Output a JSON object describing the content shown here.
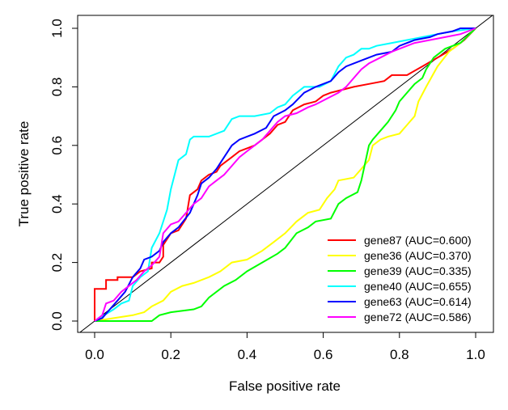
{
  "chart_data": {
    "type": "line",
    "title": "",
    "xlabel": "False positive rate",
    "ylabel": "True positive rate",
    "xlim": [
      0,
      1
    ],
    "ylim": [
      0,
      1
    ],
    "x_ticks": [
      "0.0",
      "0.2",
      "0.4",
      "0.6",
      "0.8",
      "1.0"
    ],
    "y_ticks": [
      "0.0",
      "0.2",
      "0.4",
      "0.6",
      "0.8",
      "1.0"
    ],
    "grid": false,
    "legend_position": "bottom-right",
    "reference_line": {
      "from": [
        0,
        0
      ],
      "to": [
        1,
        1
      ],
      "color": "#000000"
    },
    "series": [
      {
        "name": "gene87 (AUC=0.600)",
        "color": "#ff0000",
        "points": [
          [
            0,
            0
          ],
          [
            0,
            0.11
          ],
          [
            0.03,
            0.11
          ],
          [
            0.03,
            0.14
          ],
          [
            0.06,
            0.14
          ],
          [
            0.06,
            0.15
          ],
          [
            0.1,
            0.15
          ],
          [
            0.12,
            0.17
          ],
          [
            0.15,
            0.18
          ],
          [
            0.15,
            0.2
          ],
          [
            0.17,
            0.2
          ],
          [
            0.18,
            0.22
          ],
          [
            0.18,
            0.26
          ],
          [
            0.2,
            0.3
          ],
          [
            0.22,
            0.31
          ],
          [
            0.24,
            0.35
          ],
          [
            0.25,
            0.43
          ],
          [
            0.27,
            0.45
          ],
          [
            0.28,
            0.48
          ],
          [
            0.3,
            0.5
          ],
          [
            0.32,
            0.51
          ],
          [
            0.33,
            0.53
          ],
          [
            0.36,
            0.56
          ],
          [
            0.38,
            0.58
          ],
          [
            0.4,
            0.59
          ],
          [
            0.42,
            0.6
          ],
          [
            0.44,
            0.62
          ],
          [
            0.46,
            0.64
          ],
          [
            0.48,
            0.67
          ],
          [
            0.5,
            0.68
          ],
          [
            0.52,
            0.72
          ],
          [
            0.55,
            0.74
          ],
          [
            0.58,
            0.75
          ],
          [
            0.6,
            0.77
          ],
          [
            0.62,
            0.78
          ],
          [
            0.65,
            0.79
          ],
          [
            0.68,
            0.8
          ],
          [
            0.72,
            0.81
          ],
          [
            0.76,
            0.82
          ],
          [
            0.78,
            0.84
          ],
          [
            0.82,
            0.84
          ],
          [
            0.86,
            0.87
          ],
          [
            0.9,
            0.9
          ],
          [
            0.94,
            0.93
          ],
          [
            0.97,
            0.96
          ],
          [
            1,
            1
          ]
        ]
      },
      {
        "name": "gene36 (AUC=0.370)",
        "color": "#ffff00",
        "points": [
          [
            0,
            0
          ],
          [
            0.05,
            0.01
          ],
          [
            0.1,
            0.02
          ],
          [
            0.13,
            0.03
          ],
          [
            0.15,
            0.05
          ],
          [
            0.18,
            0.07
          ],
          [
            0.2,
            0.1
          ],
          [
            0.23,
            0.12
          ],
          [
            0.26,
            0.13
          ],
          [
            0.3,
            0.15
          ],
          [
            0.33,
            0.17
          ],
          [
            0.36,
            0.2
          ],
          [
            0.4,
            0.21
          ],
          [
            0.44,
            0.24
          ],
          [
            0.47,
            0.27
          ],
          [
            0.5,
            0.3
          ],
          [
            0.53,
            0.34
          ],
          [
            0.56,
            0.37
          ],
          [
            0.59,
            0.38
          ],
          [
            0.61,
            0.42
          ],
          [
            0.63,
            0.45
          ],
          [
            0.64,
            0.48
          ],
          [
            0.68,
            0.49
          ],
          [
            0.7,
            0.52
          ],
          [
            0.72,
            0.55
          ],
          [
            0.73,
            0.6
          ],
          [
            0.75,
            0.62
          ],
          [
            0.77,
            0.63
          ],
          [
            0.8,
            0.64
          ],
          [
            0.82,
            0.67
          ],
          [
            0.84,
            0.7
          ],
          [
            0.85,
            0.75
          ],
          [
            0.87,
            0.8
          ],
          [
            0.9,
            0.87
          ],
          [
            0.93,
            0.92
          ],
          [
            0.96,
            0.95
          ],
          [
            1,
            1
          ]
        ]
      },
      {
        "name": "gene39 (AUC=0.335)",
        "color": "#00ff00",
        "points": [
          [
            0,
            0
          ],
          [
            0.08,
            0
          ],
          [
            0.15,
            0
          ],
          [
            0.17,
            0.02
          ],
          [
            0.2,
            0.03
          ],
          [
            0.26,
            0.04
          ],
          [
            0.28,
            0.05
          ],
          [
            0.3,
            0.08
          ],
          [
            0.34,
            0.12
          ],
          [
            0.37,
            0.14
          ],
          [
            0.4,
            0.17
          ],
          [
            0.44,
            0.2
          ],
          [
            0.48,
            0.23
          ],
          [
            0.5,
            0.25
          ],
          [
            0.53,
            0.3
          ],
          [
            0.56,
            0.32
          ],
          [
            0.58,
            0.34
          ],
          [
            0.62,
            0.35
          ],
          [
            0.64,
            0.4
          ],
          [
            0.66,
            0.42
          ],
          [
            0.69,
            0.44
          ],
          [
            0.7,
            0.48
          ],
          [
            0.71,
            0.54
          ],
          [
            0.72,
            0.6
          ],
          [
            0.73,
            0.62
          ],
          [
            0.75,
            0.65
          ],
          [
            0.77,
            0.68
          ],
          [
            0.79,
            0.72
          ],
          [
            0.8,
            0.75
          ],
          [
            0.82,
            0.78
          ],
          [
            0.84,
            0.81
          ],
          [
            0.86,
            0.83
          ],
          [
            0.87,
            0.86
          ],
          [
            0.89,
            0.9
          ],
          [
            0.92,
            0.93
          ],
          [
            0.96,
            0.95
          ],
          [
            1,
            1
          ]
        ]
      },
      {
        "name": "gene40 (AUC=0.655)",
        "color": "#00ffff",
        "points": [
          [
            0,
            0
          ],
          [
            0.05,
            0.04
          ],
          [
            0.07,
            0.06
          ],
          [
            0.09,
            0.07
          ],
          [
            0.1,
            0.12
          ],
          [
            0.12,
            0.15
          ],
          [
            0.14,
            0.17
          ],
          [
            0.15,
            0.25
          ],
          [
            0.17,
            0.3
          ],
          [
            0.19,
            0.38
          ],
          [
            0.2,
            0.45
          ],
          [
            0.21,
            0.5
          ],
          [
            0.22,
            0.55
          ],
          [
            0.24,
            0.57
          ],
          [
            0.25,
            0.62
          ],
          [
            0.26,
            0.63
          ],
          [
            0.3,
            0.63
          ],
          [
            0.34,
            0.65
          ],
          [
            0.36,
            0.69
          ],
          [
            0.38,
            0.7
          ],
          [
            0.42,
            0.7
          ],
          [
            0.46,
            0.71
          ],
          [
            0.48,
            0.73
          ],
          [
            0.5,
            0.74
          ],
          [
            0.52,
            0.77
          ],
          [
            0.55,
            0.8
          ],
          [
            0.59,
            0.8
          ],
          [
            0.62,
            0.82
          ],
          [
            0.64,
            0.87
          ],
          [
            0.66,
            0.9
          ],
          [
            0.68,
            0.91
          ],
          [
            0.7,
            0.93
          ],
          [
            0.72,
            0.93
          ],
          [
            0.74,
            0.94
          ],
          [
            0.78,
            0.95
          ],
          [
            0.82,
            0.96
          ],
          [
            0.86,
            0.97
          ],
          [
            0.9,
            0.98
          ],
          [
            0.94,
            0.99
          ],
          [
            1,
            1
          ]
        ]
      },
      {
        "name": "gene63 (AUC=0.614)",
        "color": "#0000ff",
        "points": [
          [
            0,
            0
          ],
          [
            0.02,
            0.01
          ],
          [
            0.04,
            0.04
          ],
          [
            0.06,
            0.07
          ],
          [
            0.08,
            0.1
          ],
          [
            0.1,
            0.15
          ],
          [
            0.12,
            0.18
          ],
          [
            0.13,
            0.21
          ],
          [
            0.15,
            0.22
          ],
          [
            0.17,
            0.24
          ],
          [
            0.18,
            0.27
          ],
          [
            0.2,
            0.3
          ],
          [
            0.22,
            0.32
          ],
          [
            0.25,
            0.37
          ],
          [
            0.27,
            0.43
          ],
          [
            0.28,
            0.47
          ],
          [
            0.3,
            0.49
          ],
          [
            0.32,
            0.52
          ],
          [
            0.34,
            0.56
          ],
          [
            0.36,
            0.6
          ],
          [
            0.38,
            0.62
          ],
          [
            0.4,
            0.63
          ],
          [
            0.42,
            0.64
          ],
          [
            0.45,
            0.66
          ],
          [
            0.47,
            0.7
          ],
          [
            0.5,
            0.72
          ],
          [
            0.52,
            0.74
          ],
          [
            0.55,
            0.78
          ],
          [
            0.58,
            0.8
          ],
          [
            0.62,
            0.82
          ],
          [
            0.64,
            0.85
          ],
          [
            0.66,
            0.87
          ],
          [
            0.7,
            0.89
          ],
          [
            0.72,
            0.9
          ],
          [
            0.74,
            0.91
          ],
          [
            0.78,
            0.92
          ],
          [
            0.8,
            0.94
          ],
          [
            0.84,
            0.96
          ],
          [
            0.88,
            0.97
          ],
          [
            0.9,
            0.98
          ],
          [
            0.94,
            0.99
          ],
          [
            0.96,
            1
          ],
          [
            1,
            1
          ]
        ]
      },
      {
        "name": "gene72 (AUC=0.586)",
        "color": "#ff00ff",
        "points": [
          [
            0,
            0
          ],
          [
            0.02,
            0.02
          ],
          [
            0.03,
            0.06
          ],
          [
            0.05,
            0.07
          ],
          [
            0.07,
            0.1
          ],
          [
            0.09,
            0.12
          ],
          [
            0.11,
            0.14
          ],
          [
            0.13,
            0.17
          ],
          [
            0.15,
            0.19
          ],
          [
            0.17,
            0.22
          ],
          [
            0.18,
            0.3
          ],
          [
            0.2,
            0.33
          ],
          [
            0.22,
            0.34
          ],
          [
            0.24,
            0.37
          ],
          [
            0.26,
            0.4
          ],
          [
            0.28,
            0.42
          ],
          [
            0.3,
            0.46
          ],
          [
            0.32,
            0.48
          ],
          [
            0.34,
            0.5
          ],
          [
            0.36,
            0.53
          ],
          [
            0.38,
            0.56
          ],
          [
            0.4,
            0.58
          ],
          [
            0.42,
            0.6
          ],
          [
            0.44,
            0.62
          ],
          [
            0.46,
            0.65
          ],
          [
            0.48,
            0.68
          ],
          [
            0.5,
            0.7
          ],
          [
            0.53,
            0.71
          ],
          [
            0.56,
            0.73
          ],
          [
            0.58,
            0.74
          ],
          [
            0.61,
            0.76
          ],
          [
            0.64,
            0.78
          ],
          [
            0.66,
            0.8
          ],
          [
            0.68,
            0.83
          ],
          [
            0.7,
            0.86
          ],
          [
            0.72,
            0.88
          ],
          [
            0.75,
            0.9
          ],
          [
            0.78,
            0.92
          ],
          [
            0.8,
            0.93
          ],
          [
            0.84,
            0.95
          ],
          [
            0.88,
            0.96
          ],
          [
            0.92,
            0.97
          ],
          [
            0.96,
            0.98
          ],
          [
            1,
            1
          ]
        ]
      }
    ]
  }
}
